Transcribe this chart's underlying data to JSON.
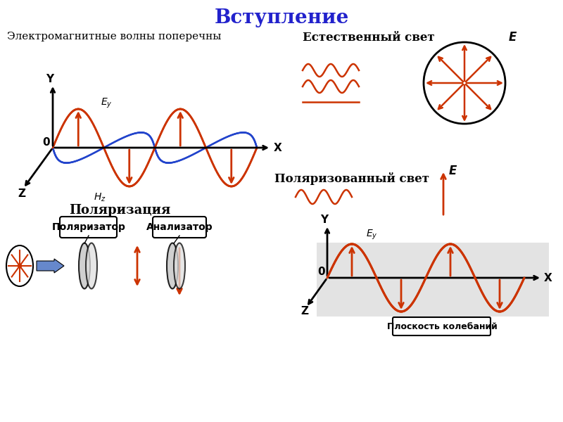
{
  "title": "Вступление",
  "title_color": "#2222CC",
  "title_fontsize": 20,
  "bg_color": "#FFFFFF",
  "section1_title": "Электромагнитные волны поперечны",
  "section2_title": "Естественный свет",
  "section3_title": "Поляризованный свет",
  "section4_title": "Поляризация",
  "polarizer_label": "Поляризатор",
  "analyzer_label": "Анализатор",
  "plane_label": "Плоскость колебаний",
  "red_color": "#CC3300",
  "blue_color": "#2244CC",
  "arrow_blue": "#6688CC"
}
